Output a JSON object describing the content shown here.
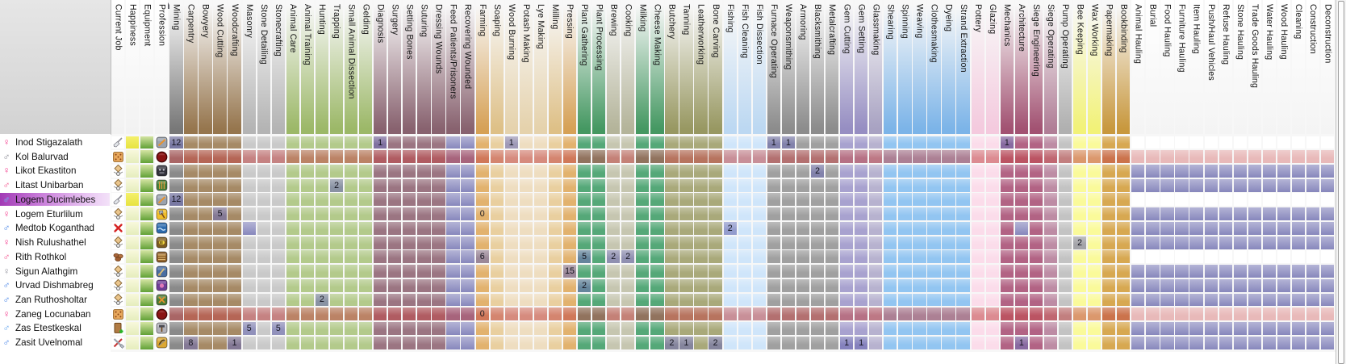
{
  "window": {
    "kind": "dwarf-labor-grid"
  },
  "info_columns": [
    "Current Job",
    "Happiness",
    "Equipment",
    "Profession"
  ],
  "labor_columns": [
    {
      "label": "Mining",
      "group": "mining"
    },
    {
      "label": "Carpentry",
      "group": "wood"
    },
    {
      "label": "Bowyery",
      "group": "wood"
    },
    {
      "label": "Wood Cutting",
      "group": "wood"
    },
    {
      "label": "Woodcrafting",
      "group": "wood"
    },
    {
      "label": "Masonry",
      "group": "stone"
    },
    {
      "label": "Stone Detailing",
      "group": "stone"
    },
    {
      "label": "Stonecrafting",
      "group": "stone"
    },
    {
      "label": "Animal Care",
      "group": "animal"
    },
    {
      "label": "Animal Training",
      "group": "animal"
    },
    {
      "label": "Hunting",
      "group": "animal"
    },
    {
      "label": "Trapping",
      "group": "animal"
    },
    {
      "label": "Small Animal Dissection",
      "group": "animal"
    },
    {
      "label": "Gelding",
      "group": "animal"
    },
    {
      "label": "Diagnosis",
      "group": "medical"
    },
    {
      "label": "Surgery",
      "group": "medical"
    },
    {
      "label": "Setting Bones",
      "group": "medical"
    },
    {
      "label": "Suturing",
      "group": "medical"
    },
    {
      "label": "Dressing Wounds",
      "group": "medical"
    },
    {
      "label": "Feed Patients/Prisoners",
      "group": "medical"
    },
    {
      "label": "Recovering Wounded",
      "group": "medical"
    },
    {
      "label": "Farming",
      "group": "farm1"
    },
    {
      "label": "Soaping",
      "group": "farm2"
    },
    {
      "label": "Wood Burning",
      "group": "farm3"
    },
    {
      "label": "Potash Making",
      "group": "farm3"
    },
    {
      "label": "Lye Making",
      "group": "farm3"
    },
    {
      "label": "Milling",
      "group": "farm2"
    },
    {
      "label": "Pressing",
      "group": "farm1"
    },
    {
      "label": "Plant Gathering",
      "group": "plant"
    },
    {
      "label": "Plant Processing",
      "group": "plant"
    },
    {
      "label": "Brewing",
      "group": "kitchen"
    },
    {
      "label": "Cooking",
      "group": "kitchen"
    },
    {
      "label": "Milking",
      "group": "plant"
    },
    {
      "label": "Cheese Making",
      "group": "plant"
    },
    {
      "label": "Butchery",
      "group": "olive"
    },
    {
      "label": "Tanning",
      "group": "olive"
    },
    {
      "label": "Leatherworking",
      "group": "olive"
    },
    {
      "label": "Bone Carving",
      "group": "olive"
    },
    {
      "label": "Fishing",
      "group": "fishing"
    },
    {
      "label": "Fish Cleaning",
      "group": "fishing"
    },
    {
      "label": "Fish Dissection",
      "group": "fishing"
    },
    {
      "label": "Furnace Operating",
      "group": "metal"
    },
    {
      "label": "Weaponsmithing",
      "group": "metal"
    },
    {
      "label": "Armoring",
      "group": "metal"
    },
    {
      "label": "Blacksmithing",
      "group": "metal"
    },
    {
      "label": "Metalcrafting",
      "group": "metal"
    },
    {
      "label": "Gem Cutting",
      "group": "gem"
    },
    {
      "label": "Gem Setting",
      "group": "gem"
    },
    {
      "label": "Glassmaking",
      "group": "glass"
    },
    {
      "label": "Shearing",
      "group": "textile"
    },
    {
      "label": "Spinning",
      "group": "textile"
    },
    {
      "label": "Weaving",
      "group": "textile"
    },
    {
      "label": "Clothesmaking",
      "group": "textile"
    },
    {
      "label": "Dyeing",
      "group": "textile"
    },
    {
      "label": "Strand Extraction",
      "group": "textile"
    },
    {
      "label": "Pottery",
      "group": "pottery"
    },
    {
      "label": "Glazing",
      "group": "pottery"
    },
    {
      "label": "Mechanics",
      "group": "siege"
    },
    {
      "label": "Architecture",
      "group": "siege"
    },
    {
      "label": "Siege Engineering",
      "group": "siege"
    },
    {
      "label": "Siege Operating",
      "group": "siegeop"
    },
    {
      "label": "Pump Operating",
      "group": "pump"
    },
    {
      "label": "Bee Keeping",
      "group": "bee"
    },
    {
      "label": "Wax Working",
      "group": "bee"
    },
    {
      "label": "Papermaking",
      "group": "paper"
    },
    {
      "label": "Bookbinding",
      "group": "paper"
    },
    {
      "label": "Animal Hauling",
      "group": "haul"
    },
    {
      "label": "Burial",
      "group": "haul"
    },
    {
      "label": "Food Hauling",
      "group": "haul"
    },
    {
      "label": "Furniture Hauling",
      "group": "haul"
    },
    {
      "label": "Item Hauling",
      "group": "haul"
    },
    {
      "label": "Push/Haul Vehicles",
      "group": "haul"
    },
    {
      "label": "Refuse Hauling",
      "group": "haul"
    },
    {
      "label": "Stone Hauling",
      "group": "haul"
    },
    {
      "label": "Trade Goods Hauling",
      "group": "haul"
    },
    {
      "label": "Water Hauling",
      "group": "haul"
    },
    {
      "label": "Wood Hauling",
      "group": "haul"
    },
    {
      "label": "Cleaning",
      "group": "haul"
    },
    {
      "label": "Construction",
      "group": "haul"
    },
    {
      "label": "Deconstruction",
      "group": "haul"
    }
  ],
  "always_on_columns": [
    19,
    20
  ],
  "group_colors": {
    "mining": {
      "body": "#8a8a8a",
      "head": "#787878"
    },
    "wood": {
      "body": "#a68a66",
      "head": "#96764e"
    },
    "stone": {
      "body": "#c9c9c9",
      "head": "#b4b4b4"
    },
    "animal": {
      "body": "#b3ca8b",
      "head": "#9cb868"
    },
    "medical": {
      "body": "#9b7582",
      "head": "#88626f"
    },
    "farm1": {
      "body": "#e2b26e",
      "head": "#d6a156"
    },
    "farm2": {
      "body": "#e9cf9f",
      "head": "#dec087"
    },
    "farm3": {
      "body": "#eeddc0",
      "head": "#e5d2ac"
    },
    "plant": {
      "body": "#55a878",
      "head": "#459862"
    },
    "kitchen": {
      "body": "#c6c6b0",
      "head": "#b4b49a"
    },
    "olive": {
      "body": "#a9a97a",
      "head": "#989862"
    },
    "fishing": {
      "body": "#cfe5fa",
      "head": "#bcd8f2"
    },
    "metal": {
      "body": "#a0a0a0",
      "head": "#8c8c8c"
    },
    "gem": {
      "body": "#a8a2cf",
      "head": "#968ec2"
    },
    "glass": {
      "body": "#b7b2cf",
      "head": "#a8a2c2"
    },
    "textile": {
      "body": "#92c5f1",
      "head": "#7cb4e8"
    },
    "pottery": {
      "body": "#fbdcea",
      "head": "#f4cade"
    },
    "siege": {
      "body": "#b26384",
      "head": "#a25272"
    },
    "siegeop": {
      "body": "#bd8ca4",
      "head": "#b07e96"
    },
    "pump": {
      "body": "#c3c3c3",
      "head": "#b0b0b0"
    },
    "bee": {
      "body": "#fafa9a",
      "head": "#f2f278"
    },
    "paper": {
      "body": "#d7a851",
      "head": "#c8983e"
    },
    "haul": {
      "body": "#ffffff",
      "head": "#fbfbfb"
    }
  },
  "accent_colors": {
    "enabled_labor_light": "#b4b4d6",
    "enabled_labor_dark": "#8787bc",
    "skill_blend": "#6f6fb2",
    "red_row": "#c24848",
    "red_row_light": "#ee9e9e",
    "selected_row": "#a13ab5",
    "female_pink": "#f43f8f",
    "male_blue": "#4a86e8"
  },
  "dwarves": [
    {
      "name": "Inod Stigazalath",
      "gender": "female",
      "gender_symbol": "♀",
      "gender_color": "#f43f8f",
      "current_job_icon": "dig-shovel-icon",
      "profession_icon": "miner",
      "happiness": "bright",
      "red_row": false,
      "hauling": "off",
      "selected": false,
      "skills": {
        "0": "12",
        "14": "1",
        "23": "1",
        "41": "1",
        "42": "1",
        "57": "1"
      },
      "enabled_labors": []
    },
    {
      "name": "Kol Balurvad",
      "gender": "male",
      "gender_symbol": "♂",
      "gender_color": "#8a8a94",
      "current_job_icon": "craft-icon",
      "profession_icon": "soldier",
      "happiness": "normal",
      "red_row": true,
      "hauling": "on",
      "selected": false,
      "skills": {},
      "enabled_labors": []
    },
    {
      "name": "Likot Ekastiton",
      "gender": "female",
      "gender_symbol": "♀",
      "gender_color": "#f43f8f",
      "current_job_icon": "wheelbarrow-icon",
      "profession_icon": "mask",
      "happiness": "normal",
      "red_row": false,
      "hauling": "on",
      "selected": false,
      "skills": {
        "44": "2"
      },
      "enabled_labors": []
    },
    {
      "name": "Litast Unibarban",
      "gender": "male",
      "gender_symbol": "♂",
      "gender_color": "#f4578f",
      "current_job_icon": "wheelbarrow-icon",
      "profession_icon": "weaver",
      "happiness": "normal",
      "red_row": false,
      "hauling": "on",
      "selected": false,
      "skills": {
        "11": "2"
      },
      "enabled_labors": []
    },
    {
      "name": "Logem Ducimlebes",
      "gender": "male",
      "gender_symbol": "♂",
      "gender_color": "#4a86e8",
      "current_job_icon": "dig-shovel-icon",
      "profession_icon": "miner",
      "happiness": "bright",
      "red_row": false,
      "hauling": "off",
      "selected": true,
      "skills": {
        "0": "12"
      },
      "enabled_labors": []
    },
    {
      "name": "Logem Eturlilum",
      "gender": "female",
      "gender_symbol": "♀",
      "gender_color": "#f43f8f",
      "current_job_icon": "wheelbarrow-icon",
      "profession_icon": "woodcutter",
      "happiness": "normal",
      "red_row": false,
      "hauling": "on",
      "selected": false,
      "skills": {
        "3": "5",
        "21": "0"
      },
      "enabled_labors": []
    },
    {
      "name": "Medtob Koganthad",
      "gender": "male",
      "gender_symbol": "♂",
      "gender_color": "#4a86e8",
      "current_job_icon": "no-job-icon",
      "profession_icon": "fisher",
      "happiness": "normal",
      "red_row": false,
      "hauling": "on",
      "selected": false,
      "skills": {
        "38": "2"
      },
      "enabled_labors": [
        5,
        58
      ]
    },
    {
      "name": "Nish Rulushathel",
      "gender": "female",
      "gender_symbol": "♀",
      "gender_color": "#f43f8f",
      "current_job_icon": "wheelbarrow-icon",
      "profession_icon": "beekeeper",
      "happiness": "normal",
      "red_row": false,
      "hauling": "on",
      "selected": false,
      "skills": {
        "62": "2"
      },
      "enabled_labors": []
    },
    {
      "name": "Rith Rothkol",
      "gender": "male",
      "gender_symbol": "♂",
      "gender_color": "#f4578f",
      "current_job_icon": "eat-icon",
      "profession_icon": "farmer",
      "happiness": "normal",
      "red_row": false,
      "hauling": "off",
      "selected": false,
      "skills": {
        "21": "6",
        "28": "5",
        "30": "2",
        "31": "2"
      },
      "enabled_labors": []
    },
    {
      "name": "Sigun Alathgim",
      "gender": "female",
      "gender_symbol": "♀",
      "gender_color": "#9a9aa4",
      "current_job_icon": "wheelbarrow-icon",
      "profession_icon": "presser",
      "happiness": "normal",
      "red_row": false,
      "hauling": "on",
      "selected": false,
      "skills": {
        "27": "15"
      },
      "enabled_labors": []
    },
    {
      "name": "Urvad Dishmabreg",
      "gender": "male",
      "gender_symbol": "♂",
      "gender_color": "#4a86e8",
      "current_job_icon": "wheelbarrow-icon",
      "profession_icon": "dyer",
      "happiness": "normal",
      "red_row": false,
      "hauling": "on",
      "selected": false,
      "skills": {
        "28": "2"
      },
      "enabled_labors": []
    },
    {
      "name": "Zan Ruthosholtar",
      "gender": "male",
      "gender_symbol": "♂",
      "gender_color": "#4a86e8",
      "current_job_icon": "wheelbarrow-icon",
      "profession_icon": "ranger",
      "happiness": "normal",
      "red_row": false,
      "hauling": "on",
      "selected": false,
      "skills": {
        "10": "2"
      },
      "enabled_labors": []
    },
    {
      "name": "Zaneg Locunaban",
      "gender": "female",
      "gender_symbol": "♀",
      "gender_color": "#f43f8f",
      "current_job_icon": "craft-icon",
      "profession_icon": "soldier",
      "happiness": "normal",
      "red_row": true,
      "hauling": "on",
      "selected": false,
      "skills": {
        "21": "0"
      },
      "enabled_labors": []
    },
    {
      "name": "Zas Etestkeskal",
      "gender": "male",
      "gender_symbol": "♂",
      "gender_color": "#6aa8f0",
      "current_job_icon": "build-door-icon",
      "profession_icon": "mason",
      "happiness": "normal",
      "red_row": false,
      "hauling": "on",
      "selected": false,
      "skills": {
        "5": "5",
        "7": "5"
      },
      "enabled_labors": []
    },
    {
      "name": "Zasit Uvelnomal",
      "gender": "male",
      "gender_symbol": "♂",
      "gender_color": "#4a86e8",
      "current_job_icon": "smooth-stone-icon",
      "profession_icon": "bowyer",
      "happiness": "normal",
      "red_row": false,
      "hauling": "on",
      "selected": false,
      "skills": {
        "1": "8",
        "4": "1",
        "34": "2",
        "35": "1",
        "37": "2",
        "46": "1",
        "47": "1",
        "58": "1"
      },
      "enabled_labors": []
    }
  ]
}
